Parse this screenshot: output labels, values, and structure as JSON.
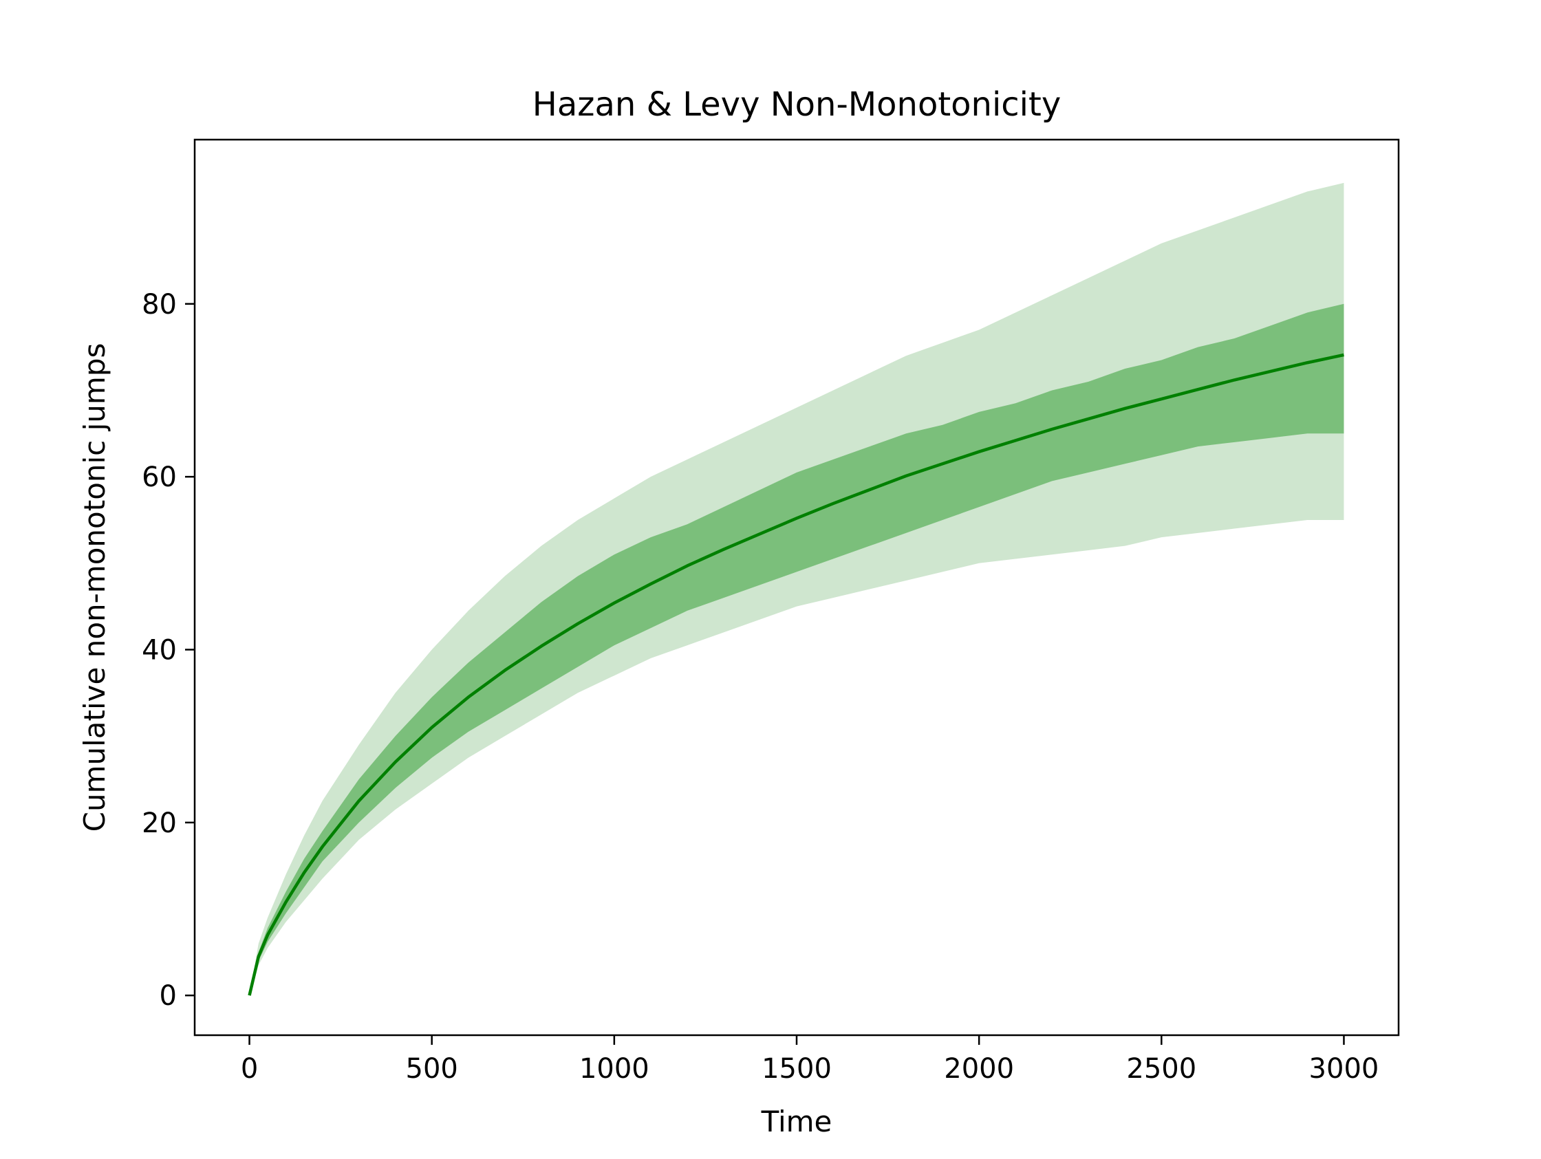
{
  "chart_data": {
    "type": "area",
    "title": "Hazan & Levy Non-Monotonicity",
    "xlabel": "Time",
    "ylabel": "Cumulative non-monotonic jumps",
    "xlim": [
      -150,
      3150
    ],
    "ylim": [
      -4.6,
      99
    ],
    "xticks": [
      0,
      500,
      1000,
      1500,
      2000,
      2500,
      3000
    ],
    "yticks": [
      0,
      20,
      40,
      60,
      80
    ],
    "grid": false,
    "legend": "none",
    "colors": {
      "line": "#008000",
      "inner_band": "#7bbf7b",
      "outer_band": "#cfe6cf"
    },
    "x": [
      0,
      25,
      50,
      100,
      150,
      200,
      300,
      400,
      500,
      600,
      700,
      800,
      900,
      1000,
      1100,
      1200,
      1300,
      1400,
      1500,
      1600,
      1700,
      1800,
      1900,
      2000,
      2100,
      2200,
      2300,
      2400,
      2500,
      2600,
      2700,
      2800,
      2900,
      3000
    ],
    "series": [
      {
        "role": "mean",
        "values": [
          0,
          4.5,
          7,
          10.8,
          14.2,
          17.2,
          22.5,
          27,
          31,
          34.5,
          37.6,
          40.4,
          43,
          45.4,
          47.6,
          49.7,
          51.6,
          53.4,
          55.2,
          56.9,
          58.5,
          60.1,
          61.5,
          62.9,
          64.2,
          65.5,
          66.7,
          67.9,
          69,
          70.1,
          71.2,
          72.2,
          73.2,
          74.1
        ]
      },
      {
        "role": "inner_band",
        "lower": [
          0,
          4,
          6.2,
          9.5,
          12.5,
          15.5,
          20,
          24,
          27.5,
          30.5,
          33,
          35.5,
          38,
          40.5,
          42.5,
          44.5,
          46,
          47.5,
          49,
          50.5,
          52,
          53.5,
          55,
          56.5,
          58,
          59.5,
          60.5,
          61.5,
          62.5,
          63.5,
          64,
          64.5,
          65,
          65
        ],
        "upper": [
          0,
          5,
          7.8,
          12,
          15.8,
          19,
          25,
          30,
          34.5,
          38.5,
          42,
          45.5,
          48.5,
          51,
          53,
          54.5,
          56.5,
          58.5,
          60.5,
          62,
          63.5,
          65,
          66,
          67.5,
          68.5,
          70,
          71,
          72.5,
          73.5,
          75,
          76,
          77.5,
          79,
          80
        ]
      },
      {
        "role": "outer_band",
        "lower": [
          0,
          3.5,
          5.5,
          8.5,
          11,
          13.5,
          18,
          21.5,
          24.5,
          27.5,
          30,
          32.5,
          35,
          37,
          39,
          40.5,
          42,
          43.5,
          45,
          46,
          47,
          48,
          49,
          50,
          50.5,
          51,
          51.5,
          52,
          53,
          53.5,
          54,
          54.5,
          55,
          55
        ],
        "upper": [
          0,
          6,
          9,
          14,
          18.5,
          22.5,
          29,
          35,
          40,
          44.5,
          48.5,
          52,
          55,
          57.5,
          60,
          62,
          64,
          66,
          68,
          70,
          72,
          74,
          75.5,
          77,
          79,
          81,
          83,
          85,
          87,
          88.5,
          90,
          91.5,
          93,
          94
        ]
      }
    ]
  }
}
